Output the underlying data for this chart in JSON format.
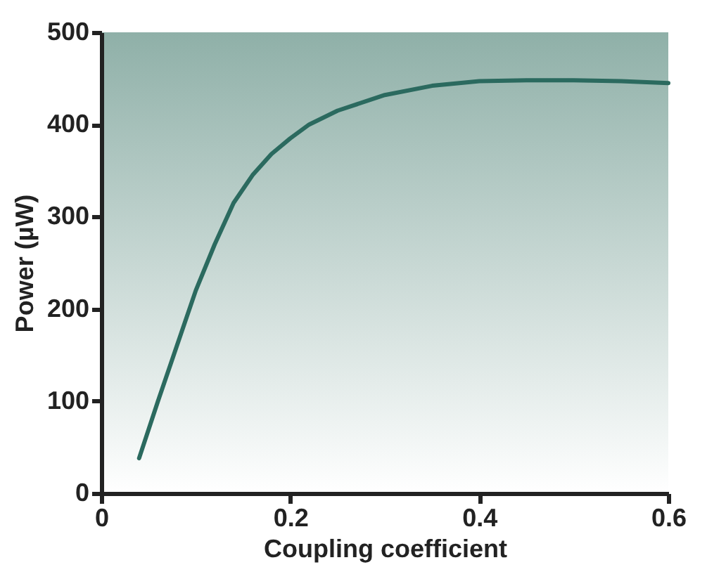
{
  "chart_data": {
    "type": "line",
    "xlabel": "Coupling coefficient",
    "ylabel": "Power (µW)",
    "x": [
      0.04,
      0.06,
      0.08,
      0.1,
      0.12,
      0.14,
      0.16,
      0.18,
      0.2,
      0.22,
      0.25,
      0.3,
      0.35,
      0.4,
      0.45,
      0.5,
      0.55,
      0.6
    ],
    "series": [
      {
        "color": "#2b6a5f",
        "values": [
          38,
          100,
          160,
          220,
          270,
          315,
          345,
          368,
          385,
          400,
          415,
          432,
          442,
          447,
          448,
          448,
          447,
          445
        ]
      }
    ],
    "xlim": [
      0,
      0.6
    ],
    "xticks": [
      {
        "value": 0,
        "label": "0"
      },
      0.2,
      0.4,
      0.6
    ],
    "ylim": [
      0,
      500
    ],
    "yticks": [
      0,
      100,
      200,
      300,
      400,
      500
    ],
    "grid": false,
    "legend": false,
    "marker": "none",
    "line_style": "solid"
  }
}
